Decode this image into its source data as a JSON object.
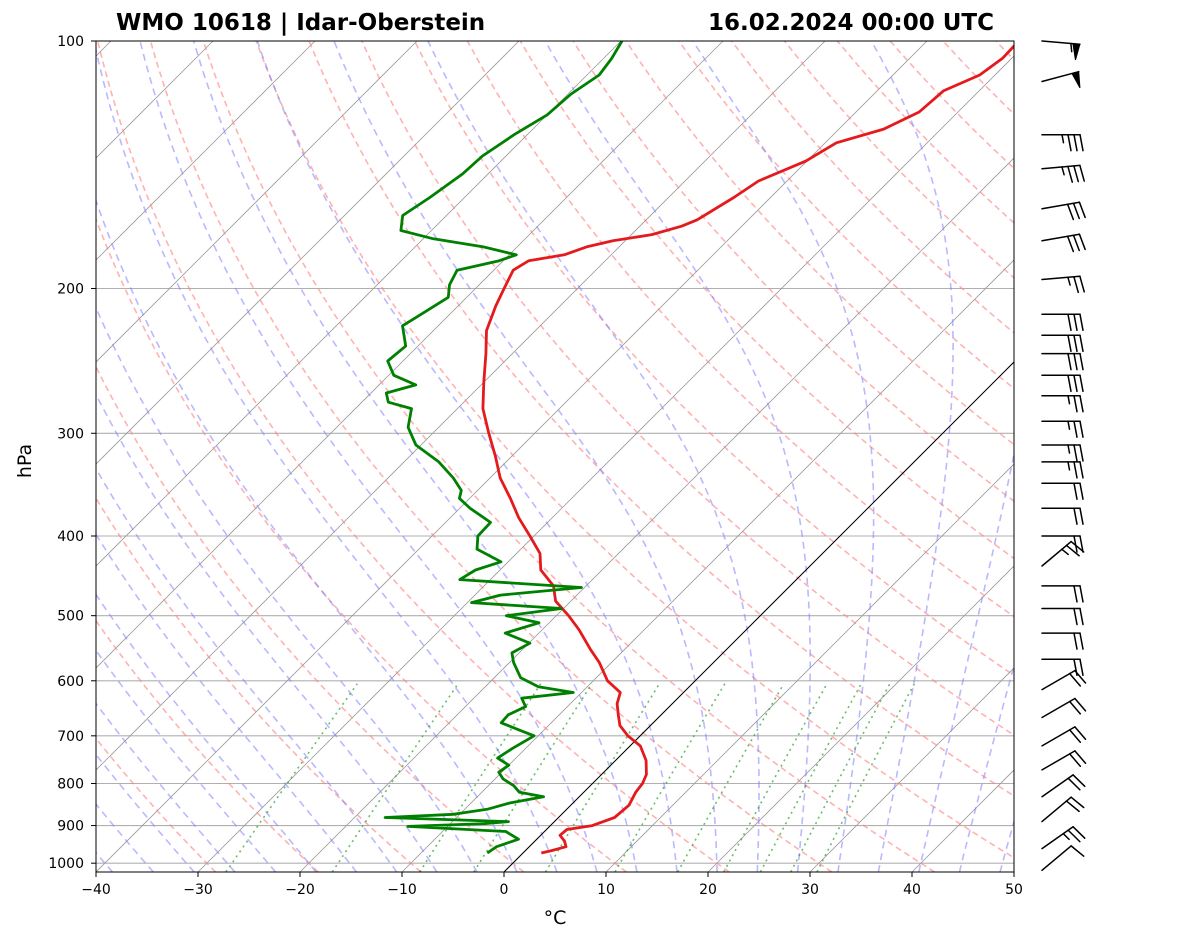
{
  "chart_data": {
    "type": "line",
    "title_left": "WMO 10618 | Idar-Oberstein",
    "title_right": "16.02.2024 00:00 UTC",
    "xlabel": "°C",
    "ylabel": "hPa",
    "xlim": [
      -40,
      50
    ],
    "ylim": [
      1025,
      100
    ],
    "y_scale": "log",
    "x_ticks": [
      -40,
      -30,
      -20,
      -10,
      0,
      10,
      20,
      30,
      40,
      50
    ],
    "x_tick_labels": [
      "−40",
      "−30",
      "−20",
      "−10",
      "0",
      "10",
      "20",
      "30",
      "40",
      "50"
    ],
    "y_ticks": [
      100,
      200,
      300,
      400,
      500,
      600,
      700,
      800,
      900,
      1000
    ],
    "y_tick_labels": [
      "100",
      "200",
      "300",
      "400",
      "500",
      "600",
      "700",
      "800",
      "900",
      "1000"
    ],
    "grid": true,
    "skew": 45,
    "reference_isotherm": 0,
    "series": [
      {
        "color": "#e41a1c",
        "role": "temperature",
        "points": [
          [
            972,
            1.8
          ],
          [
            965,
            2.6
          ],
          [
            955,
            3.6
          ],
          [
            940,
            2.9
          ],
          [
            925,
            1.9
          ],
          [
            910,
            2.0
          ],
          [
            900,
            4.1
          ],
          [
            880,
            5.5
          ],
          [
            850,
            5.7
          ],
          [
            820,
            5.1
          ],
          [
            800,
            4.9
          ],
          [
            780,
            4.4
          ],
          [
            750,
            3.0
          ],
          [
            720,
            1.0
          ],
          [
            700,
            -1.2
          ],
          [
            680,
            -3.0
          ],
          [
            660,
            -4.2
          ],
          [
            640,
            -5.4
          ],
          [
            620,
            -6.2
          ],
          [
            600,
            -8.6
          ],
          [
            570,
            -11.2
          ],
          [
            550,
            -13.3
          ],
          [
            520,
            -16.4
          ],
          [
            500,
            -18.8
          ],
          [
            480,
            -21.5
          ],
          [
            460,
            -23.2
          ],
          [
            440,
            -26.0
          ],
          [
            420,
            -27.7
          ],
          [
            400,
            -30.4
          ],
          [
            380,
            -33.3
          ],
          [
            360,
            -36.0
          ],
          [
            340,
            -39.0
          ],
          [
            320,
            -41.6
          ],
          [
            300,
            -44.5
          ],
          [
            280,
            -47.5
          ],
          [
            260,
            -50.0
          ],
          [
            240,
            -52.6
          ],
          [
            225,
            -54.8
          ],
          [
            210,
            -56.3
          ],
          [
            200,
            -57.2
          ],
          [
            190,
            -58.1
          ],
          [
            185,
            -57.5
          ],
          [
            182,
            -54.6
          ],
          [
            178,
            -53.2
          ],
          [
            175,
            -51.2
          ],
          [
            172,
            -48.0
          ],
          [
            168,
            -45.9
          ],
          [
            165,
            -45.0
          ],
          [
            155,
            -43.6
          ],
          [
            148,
            -42.8
          ],
          [
            140,
            -40.1
          ],
          [
            133,
            -38.9
          ],
          [
            128,
            -35.6
          ],
          [
            122,
            -33.8
          ],
          [
            115,
            -33.5
          ],
          [
            110,
            -31.5
          ],
          [
            105,
            -30.9
          ],
          [
            100,
            -31.0
          ]
        ]
      },
      {
        "color": "#008000",
        "role": "dewpoint",
        "points": [
          [
            972,
            -3.5
          ],
          [
            955,
            -3.2
          ],
          [
            935,
            -1.8
          ],
          [
            915,
            -3.8
          ],
          [
            902,
            -13.9
          ],
          [
            895,
            -6.6
          ],
          [
            890,
            -4.5
          ],
          [
            880,
            -17.0
          ],
          [
            872,
            -10.6
          ],
          [
            860,
            -7.8
          ],
          [
            845,
            -6.2
          ],
          [
            830,
            -3.5
          ],
          [
            820,
            -6.3
          ],
          [
            805,
            -7.5
          ],
          [
            790,
            -9.2
          ],
          [
            775,
            -10.3
          ],
          [
            760,
            -10.0
          ],
          [
            745,
            -11.8
          ],
          [
            725,
            -11.3
          ],
          [
            700,
            -10.4
          ],
          [
            690,
            -12.2
          ],
          [
            675,
            -14.9
          ],
          [
            660,
            -15.0
          ],
          [
            645,
            -14.1
          ],
          [
            630,
            -15.3
          ],
          [
            620,
            -10.8
          ],
          [
            610,
            -14.8
          ],
          [
            595,
            -17.4
          ],
          [
            570,
            -19.6
          ],
          [
            555,
            -20.7
          ],
          [
            540,
            -19.9
          ],
          [
            525,
            -23.3
          ],
          [
            510,
            -21.0
          ],
          [
            500,
            -24.9
          ],
          [
            490,
            -20.2
          ],
          [
            482,
            -29.6
          ],
          [
            472,
            -27.5
          ],
          [
            462,
            -20.3
          ],
          [
            452,
            -33.0
          ],
          [
            440,
            -32.4
          ],
          [
            430,
            -30.7
          ],
          [
            415,
            -34.3
          ],
          [
            400,
            -35.5
          ],
          [
            385,
            -35.6
          ],
          [
            370,
            -39.0
          ],
          [
            360,
            -41.0
          ],
          [
            352,
            -41.6
          ],
          [
            340,
            -43.6
          ],
          [
            325,
            -46.6
          ],
          [
            310,
            -50.5
          ],
          [
            295,
            -53.0
          ],
          [
            280,
            -54.5
          ],
          [
            275,
            -57.4
          ],
          [
            268,
            -58.5
          ],
          [
            262,
            -56.4
          ],
          [
            255,
            -59.5
          ],
          [
            245,
            -61.5
          ],
          [
            235,
            -61.2
          ],
          [
            222,
            -63.5
          ],
          [
            215,
            -62.8
          ],
          [
            205,
            -61.8
          ],
          [
            198,
            -62.9
          ],
          [
            190,
            -63.6
          ],
          [
            185,
            -60.4
          ],
          [
            182,
            -59.3
          ],
          [
            178,
            -63.3
          ],
          [
            174,
            -69.0
          ],
          [
            170,
            -73.0
          ],
          [
            163,
            -74.3
          ],
          [
            155,
            -73.4
          ],
          [
            145,
            -72.5
          ],
          [
            138,
            -72.3
          ],
          [
            130,
            -71.3
          ],
          [
            123,
            -70.0
          ],
          [
            116,
            -69.7
          ],
          [
            110,
            -68.8
          ],
          [
            105,
            -69.2
          ],
          [
            100,
            -69.9
          ]
        ]
      }
    ],
    "wind_barbs": [
      {
        "p": 100,
        "speed": 55,
        "dir": 275
      },
      {
        "p": 112,
        "speed": 50,
        "dir": 255
      },
      {
        "p": 130,
        "speed": 35,
        "dir": 270
      },
      {
        "p": 143,
        "speed": 35,
        "dir": 265
      },
      {
        "p": 160,
        "speed": 30,
        "dir": 260
      },
      {
        "p": 175,
        "speed": 30,
        "dir": 260
      },
      {
        "p": 195,
        "speed": 25,
        "dir": 265
      },
      {
        "p": 215,
        "speed": 30,
        "dir": 270
      },
      {
        "p": 228,
        "speed": 30,
        "dir": 270
      },
      {
        "p": 240,
        "speed": 30,
        "dir": 270
      },
      {
        "p": 255,
        "speed": 30,
        "dir": 270
      },
      {
        "p": 270,
        "speed": 25,
        "dir": 270
      },
      {
        "p": 290,
        "speed": 25,
        "dir": 270
      },
      {
        "p": 310,
        "speed": 25,
        "dir": 270
      },
      {
        "p": 325,
        "speed": 25,
        "dir": 270
      },
      {
        "p": 345,
        "speed": 20,
        "dir": 270
      },
      {
        "p": 370,
        "speed": 20,
        "dir": 270
      },
      {
        "p": 400,
        "speed": 20,
        "dir": 270
      },
      {
        "p": 435,
        "speed": 25,
        "dir": 230
      },
      {
        "p": 460,
        "speed": 20,
        "dir": 270
      },
      {
        "p": 490,
        "speed": 20,
        "dir": 270
      },
      {
        "p": 525,
        "speed": 20,
        "dir": 270
      },
      {
        "p": 565,
        "speed": 20,
        "dir": 270
      },
      {
        "p": 615,
        "speed": 20,
        "dir": 240
      },
      {
        "p": 665,
        "speed": 20,
        "dir": 240
      },
      {
        "p": 720,
        "speed": 20,
        "dir": 240
      },
      {
        "p": 770,
        "speed": 20,
        "dir": 240
      },
      {
        "p": 830,
        "speed": 20,
        "dir": 235
      },
      {
        "p": 890,
        "speed": 20,
        "dir": 230
      },
      {
        "p": 960,
        "speed": 25,
        "dir": 235
      },
      {
        "p": 1020,
        "speed": 10,
        "dir": 230
      }
    ]
  }
}
